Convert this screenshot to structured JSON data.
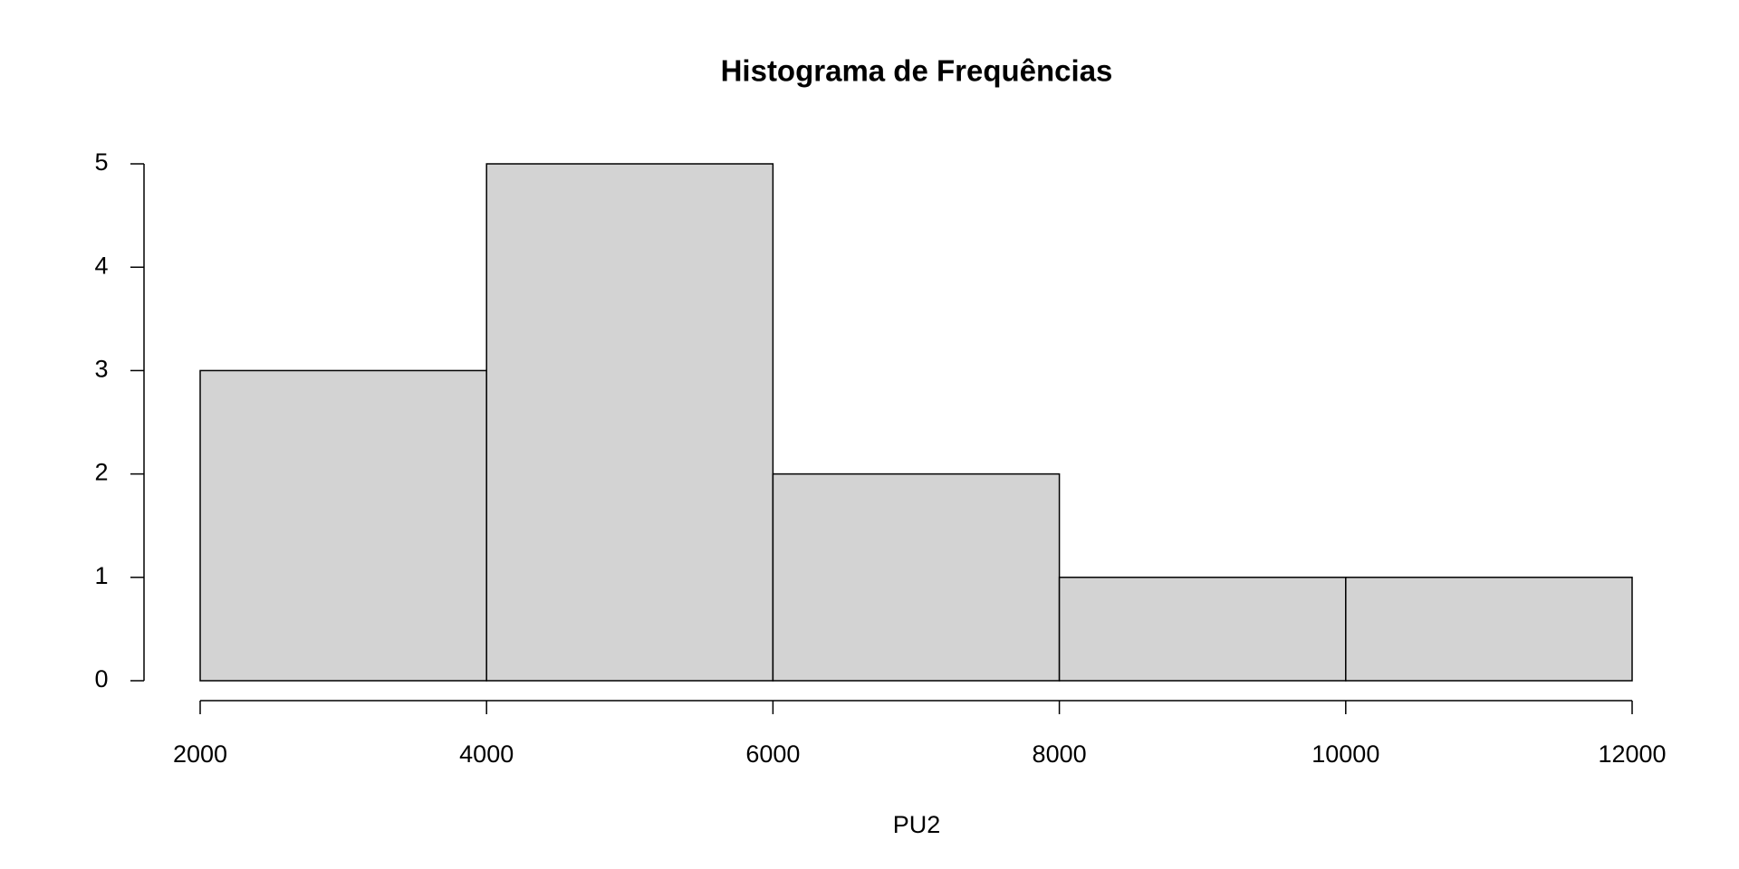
{
  "chart_data": {
    "type": "histogram",
    "title": "Histograma de Frequências",
    "x_label": "PU2",
    "bins": [
      2000,
      4000,
      6000,
      8000,
      10000,
      12000
    ],
    "values": [
      3,
      5,
      2,
      1,
      1
    ],
    "color": "#d3d3d3",
    "xlim": [
      2000,
      12000
    ],
    "xticks": [
      2000,
      4000,
      6000,
      8000,
      10000,
      12000
    ],
    "ylim": [
      0,
      5
    ],
    "yticks": [
      0,
      1,
      2,
      3,
      4,
      5
    ],
    "grid": false
  }
}
